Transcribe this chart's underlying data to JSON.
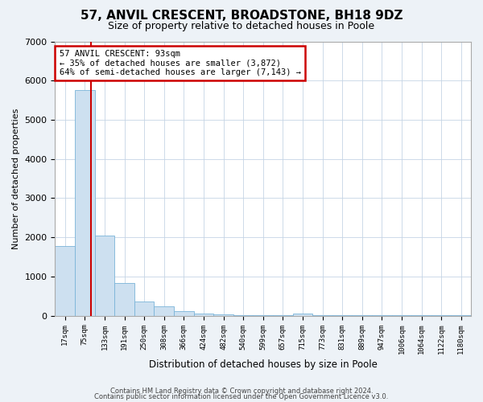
{
  "title": "57, ANVIL CRESCENT, BROADSTONE, BH18 9DZ",
  "subtitle": "Size of property relative to detached houses in Poole",
  "xlabel": "Distribution of detached houses by size in Poole",
  "ylabel": "Number of detached properties",
  "bin_labels": [
    "17sqm",
    "75sqm",
    "133sqm",
    "191sqm",
    "250sqm",
    "308sqm",
    "366sqm",
    "424sqm",
    "482sqm",
    "540sqm",
    "599sqm",
    "657sqm",
    "715sqm",
    "773sqm",
    "831sqm",
    "889sqm",
    "947sqm",
    "1006sqm",
    "1064sqm",
    "1122sqm",
    "1180sqm"
  ],
  "bar_heights": [
    1780,
    5750,
    2040,
    830,
    370,
    230,
    110,
    55,
    30,
    20,
    20,
    10,
    55,
    5,
    5,
    5,
    5,
    5,
    5,
    5,
    5
  ],
  "bar_color": "#cde0f0",
  "bar_edge_color": "#7ab4d8",
  "marker_line_color": "#cc0000",
  "annotation_title": "57 ANVIL CRESCENT: 93sqm",
  "annotation_line1": "← 35% of detached houses are smaller (3,872)",
  "annotation_line2": "64% of semi-detached houses are larger (7,143) →",
  "annotation_box_color": "#ffffff",
  "annotation_box_edge_color": "#cc0000",
  "ylim": [
    0,
    7000
  ],
  "yticks": [
    0,
    1000,
    2000,
    3000,
    4000,
    5000,
    6000,
    7000
  ],
  "footer_line1": "Contains HM Land Registry data © Crown copyright and database right 2024.",
  "footer_line2": "Contains public sector information licensed under the Open Government Licence v3.0.",
  "background_color": "#edf2f7",
  "plot_background_color": "#ffffff",
  "grid_color": "#c5d5e5"
}
